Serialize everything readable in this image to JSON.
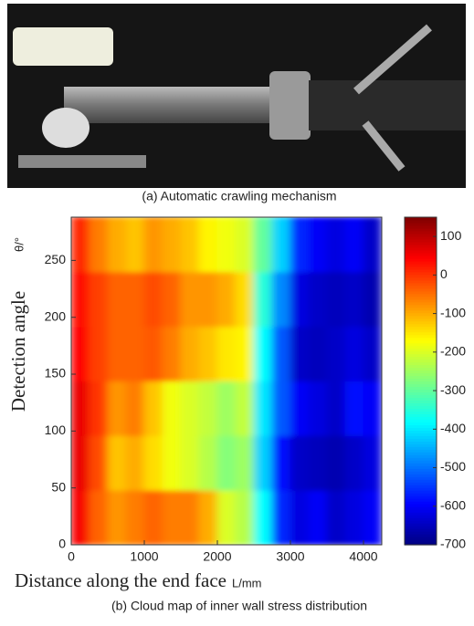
{
  "photo_caption": "(a) Automatic crawling mechanism",
  "chart_data": {
    "type": "heatmap",
    "caption": "(b) Cloud map of inner wall stress distribution",
    "xlabel": "Distance along the end face",
    "xlabel_unit": "L/mm",
    "ylabel": "Detection angle",
    "ylabel_unit": "θ/°",
    "xlim": [
      0,
      4250
    ],
    "ylim": [
      0,
      288
    ],
    "xticks": [
      0,
      1000,
      2000,
      3000,
      4000
    ],
    "yticks": [
      0,
      50,
      100,
      150,
      200,
      250
    ],
    "xbins": [
      0,
      250,
      500,
      750,
      1000,
      1250,
      1500,
      1750,
      2000,
      2250,
      2500,
      2750,
      3000,
      3250,
      3500,
      3750,
      4000,
      4250
    ],
    "ybins": [
      0,
      48,
      96,
      144,
      192,
      240,
      288
    ],
    "values": [
      [
        50,
        -40,
        -80,
        -60,
        -40,
        -60,
        -60,
        -100,
        -200,
        -230,
        -380,
        -560,
        -620,
        -600,
        -640,
        -620,
        -600
      ],
      [
        60,
        -20,
        -120,
        -100,
        -140,
        -180,
        -200,
        -230,
        -270,
        -250,
        -420,
        -580,
        -640,
        -650,
        -660,
        -640,
        -620
      ],
      [
        60,
        0,
        -80,
        -60,
        -120,
        -180,
        -200,
        -220,
        -250,
        -220,
        -400,
        -520,
        -600,
        -620,
        -640,
        -580,
        -600
      ],
      [
        40,
        -10,
        -40,
        -40,
        -30,
        -60,
        -100,
        -120,
        -150,
        -160,
        -380,
        -520,
        -640,
        -650,
        -640,
        -620,
        -640
      ],
      [
        30,
        -10,
        -40,
        -40,
        -20,
        -40,
        -80,
        -80,
        -100,
        -140,
        -350,
        -480,
        -620,
        -640,
        -650,
        -640,
        -660
      ],
      [
        10,
        -60,
        -100,
        -120,
        -80,
        -100,
        -120,
        -160,
        -180,
        -200,
        -300,
        -420,
        -560,
        -600,
        -620,
        -600,
        -640
      ]
    ],
    "colormap": "jet",
    "clim": [
      -700,
      150
    ],
    "cticks": [
      100,
      0,
      -100,
      -200,
      -300,
      -400,
      -500,
      -600,
      -700
    ]
  }
}
